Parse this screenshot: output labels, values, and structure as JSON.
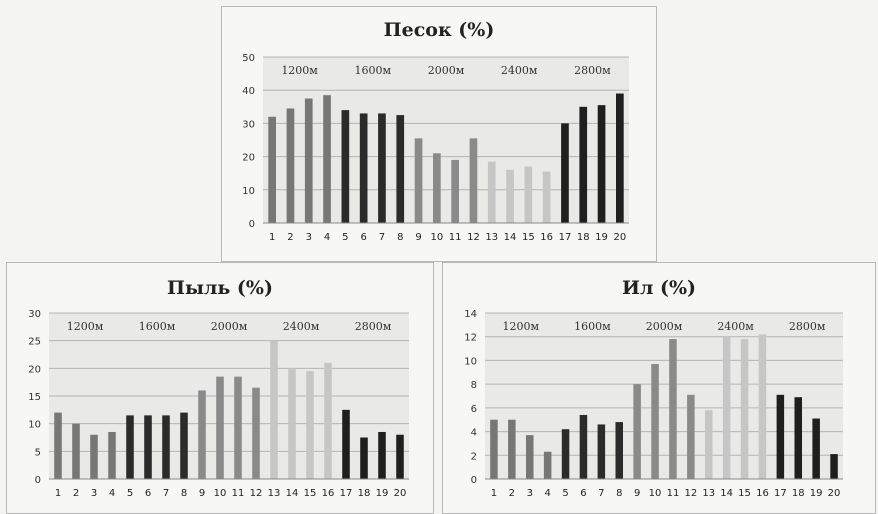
{
  "chart_data": [
    {
      "type": "bar",
      "title": "Песок (%)",
      "categories": [
        "1",
        "2",
        "3",
        "4",
        "5",
        "6",
        "7",
        "8",
        "9",
        "10",
        "11",
        "12",
        "13",
        "14",
        "15",
        "16",
        "17",
        "18",
        "19",
        "20"
      ],
      "values": [
        32,
        34.5,
        37.5,
        38.5,
        34,
        33,
        33,
        32.5,
        25.5,
        21,
        19,
        25.5,
        18.5,
        16,
        17,
        15.5,
        30,
        35,
        35.5,
        39
      ],
      "ylim": [
        0,
        50
      ],
      "yticks": [
        "0",
        "10",
        "20",
        "30",
        "40",
        "50"
      ],
      "group_labels": [
        "1200м",
        "1600м",
        "2000м",
        "2400м",
        "2800м"
      ],
      "group_colors": [
        "#777777",
        "#2b2b2b",
        "#8a8a8a",
        "#c6c6c6",
        "#1f1f1f"
      ],
      "grid": true
    },
    {
      "type": "bar",
      "title": "Пыль (%)",
      "categories": [
        "1",
        "2",
        "3",
        "4",
        "5",
        "6",
        "7",
        "8",
        "9",
        "10",
        "11",
        "12",
        "13",
        "14",
        "15",
        "16",
        "17",
        "18",
        "19",
        "20"
      ],
      "values": [
        12,
        10,
        8,
        8.5,
        11.5,
        11.5,
        11.5,
        12,
        16,
        18.5,
        18.5,
        16.5,
        25,
        20,
        19.5,
        21,
        12.5,
        7.5,
        8.5,
        8
      ],
      "ylim": [
        0,
        30
      ],
      "yticks": [
        "0",
        "5",
        "10",
        "15",
        "20",
        "25",
        "30"
      ],
      "group_labels": [
        "1200м",
        "1600м",
        "2000м",
        "2400м",
        "2800м"
      ],
      "group_colors": [
        "#777777",
        "#2b2b2b",
        "#8a8a8a",
        "#c6c6c6",
        "#1f1f1f"
      ],
      "grid": true
    },
    {
      "type": "bar",
      "title": "Ил (%)",
      "categories": [
        "1",
        "2",
        "3",
        "4",
        "5",
        "6",
        "7",
        "8",
        "9",
        "10",
        "11",
        "12",
        "13",
        "14",
        "15",
        "16",
        "17",
        "18",
        "19",
        "20"
      ],
      "values": [
        5,
        5,
        3.7,
        2.3,
        4.2,
        5.4,
        4.6,
        4.8,
        8,
        9.7,
        11.8,
        7.1,
        5.8,
        12,
        11.8,
        12.2,
        7.1,
        6.9,
        5.1,
        2.1
      ],
      "ylim": [
        0,
        14
      ],
      "yticks": [
        "0",
        "2",
        "4",
        "6",
        "8",
        "10",
        "12",
        "14"
      ],
      "group_labels": [
        "1200м",
        "1600м",
        "2000м",
        "2400м",
        "2800м"
      ],
      "group_colors": [
        "#777777",
        "#2b2b2b",
        "#8a8a8a",
        "#c6c6c6",
        "#1f1f1f"
      ],
      "grid": true
    }
  ]
}
